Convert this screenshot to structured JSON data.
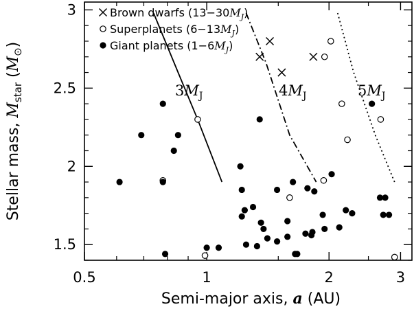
{
  "chart_data": {
    "type": "scatter",
    "xlabel": "Semi-major axis, a (AU)",
    "ylabel": "Stellar mass, M_star (M_sun)",
    "x_scale": "log",
    "xlim": [
      0.5,
      3.2
    ],
    "ylim": [
      1.4,
      3.05
    ],
    "x_ticks": [
      0.5,
      1,
      2,
      3
    ],
    "x_tick_labels": [
      "0.5",
      "1",
      "2",
      "3"
    ],
    "y_ticks": [
      1.5,
      2,
      2.5,
      3
    ],
    "y_tick_labels": [
      "1.5",
      "2",
      "2.5",
      "3"
    ],
    "legend_position": "top-left",
    "series": [
      {
        "name": "Brown dwarfs (13−30M_J)",
        "marker": "cross",
        "points": [
          {
            "x": 1.35,
            "y": 2.7
          },
          {
            "x": 1.43,
            "y": 2.8
          },
          {
            "x": 1.53,
            "y": 2.6
          },
          {
            "x": 1.83,
            "y": 2.7
          }
        ]
      },
      {
        "name": "Superplanets (6−13M_J)",
        "marker": "open-circle",
        "points": [
          {
            "x": 0.78,
            "y": 1.91
          },
          {
            "x": 0.95,
            "y": 2.3
          },
          {
            "x": 0.99,
            "y": 1.43
          },
          {
            "x": 1.6,
            "y": 1.8
          },
          {
            "x": 1.94,
            "y": 1.91
          },
          {
            "x": 1.95,
            "y": 2.7
          },
          {
            "x": 2.02,
            "y": 2.8
          },
          {
            "x": 2.15,
            "y": 2.4
          },
          {
            "x": 2.22,
            "y": 2.17
          },
          {
            "x": 2.68,
            "y": 2.3
          },
          {
            "x": 2.9,
            "y": 1.42
          }
        ]
      },
      {
        "name": "Giant planets (1−6M_J)",
        "marker": "filled-circle",
        "points": [
          {
            "x": 0.61,
            "y": 1.9
          },
          {
            "x": 0.69,
            "y": 2.2
          },
          {
            "x": 0.78,
            "y": 2.4
          },
          {
            "x": 0.78,
            "y": 1.9
          },
          {
            "x": 0.79,
            "y": 1.44
          },
          {
            "x": 0.83,
            "y": 2.1
          },
          {
            "x": 0.85,
            "y": 2.2
          },
          {
            "x": 1.0,
            "y": 1.48
          },
          {
            "x": 1.07,
            "y": 1.48
          },
          {
            "x": 1.21,
            "y": 2.0
          },
          {
            "x": 1.22,
            "y": 1.85
          },
          {
            "x": 1.22,
            "y": 1.68
          },
          {
            "x": 1.24,
            "y": 1.72
          },
          {
            "x": 1.25,
            "y": 1.5
          },
          {
            "x": 1.3,
            "y": 1.74
          },
          {
            "x": 1.33,
            "y": 1.49
          },
          {
            "x": 1.35,
            "y": 2.3
          },
          {
            "x": 1.36,
            "y": 1.64
          },
          {
            "x": 1.38,
            "y": 1.6
          },
          {
            "x": 1.41,
            "y": 1.54
          },
          {
            "x": 1.49,
            "y": 1.85
          },
          {
            "x": 1.49,
            "y": 1.52
          },
          {
            "x": 1.58,
            "y": 1.65
          },
          {
            "x": 1.58,
            "y": 1.55
          },
          {
            "x": 1.63,
            "y": 1.9
          },
          {
            "x": 1.65,
            "y": 1.44
          },
          {
            "x": 1.67,
            "y": 1.44
          },
          {
            "x": 1.75,
            "y": 1.57
          },
          {
            "x": 1.77,
            "y": 1.86
          },
          {
            "x": 1.81,
            "y": 1.56
          },
          {
            "x": 1.82,
            "y": 1.58
          },
          {
            "x": 1.84,
            "y": 1.84
          },
          {
            "x": 1.93,
            "y": 1.69
          },
          {
            "x": 1.95,
            "y": 1.6
          },
          {
            "x": 2.03,
            "y": 1.95
          },
          {
            "x": 2.12,
            "y": 1.61
          },
          {
            "x": 2.2,
            "y": 1.72
          },
          {
            "x": 2.28,
            "y": 1.7
          },
          {
            "x": 2.55,
            "y": 2.4
          },
          {
            "x": 2.67,
            "y": 1.8
          },
          {
            "x": 2.72,
            "y": 1.69
          },
          {
            "x": 2.75,
            "y": 1.8
          },
          {
            "x": 2.81,
            "y": 1.69
          }
        ]
      }
    ],
    "curves": [
      {
        "label": "3M_J",
        "style": "solid",
        "points": [
          [
            0.74,
            2.98
          ],
          [
            0.85,
            2.6
          ],
          [
            0.95,
            2.3
          ],
          [
            1.09,
            1.9
          ]
        ]
      },
      {
        "label": "4M_J",
        "style": "dashdot",
        "points": [
          [
            1.25,
            2.98
          ],
          [
            1.4,
            2.66
          ],
          [
            1.6,
            2.2
          ],
          [
            1.86,
            1.9
          ]
        ]
      },
      {
        "label": "5M_J",
        "style": "dotted",
        "points": [
          [
            2.1,
            2.98
          ],
          [
            2.3,
            2.6
          ],
          [
            2.6,
            2.2
          ],
          [
            2.9,
            1.9
          ]
        ]
      }
    ]
  }
}
